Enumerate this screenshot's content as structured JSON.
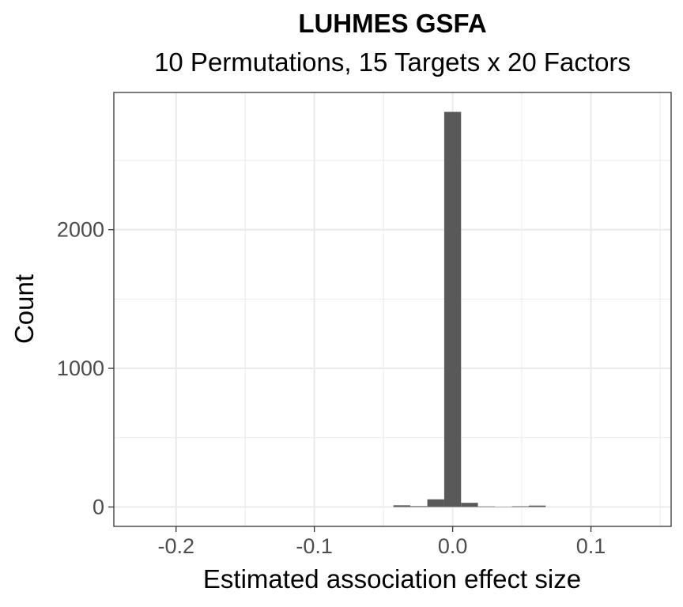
{
  "chart_data": {
    "type": "bar",
    "title": "LUHMES GSFA",
    "subtitle": "10 Permutations, 15 Targets x 20 Factors",
    "xlabel": "Estimated association effect size",
    "ylabel": "Count",
    "xlim": [
      -0.245,
      0.158
    ],
    "ylim": [
      -140,
      2990
    ],
    "x_ticks": [
      -0.2,
      -0.1,
      0.0,
      0.1
    ],
    "x_tick_labels": [
      "-0.2",
      "-0.1",
      "0.0",
      "0.1"
    ],
    "y_ticks": [
      0,
      1000,
      2000
    ],
    "y_tick_labels": [
      "0",
      "1000",
      "2000"
    ],
    "bin_width": 0.0122,
    "bins": [
      {
        "x": -0.0367,
        "count": 12
      },
      {
        "x": -0.0245,
        "count": 6
      },
      {
        "x": -0.0122,
        "count": 55
      },
      {
        "x": 0.0,
        "count": 2850
      },
      {
        "x": 0.0122,
        "count": 30
      },
      {
        "x": 0.0245,
        "count": 4
      },
      {
        "x": 0.0367,
        "count": 2
      },
      {
        "x": 0.049,
        "count": 5
      },
      {
        "x": 0.0612,
        "count": 10
      }
    ],
    "grid": true,
    "colors": {
      "bar": "#595959",
      "grid": "#ebebeb",
      "panel_border": "#333333",
      "axis_tick": "#333333"
    }
  }
}
